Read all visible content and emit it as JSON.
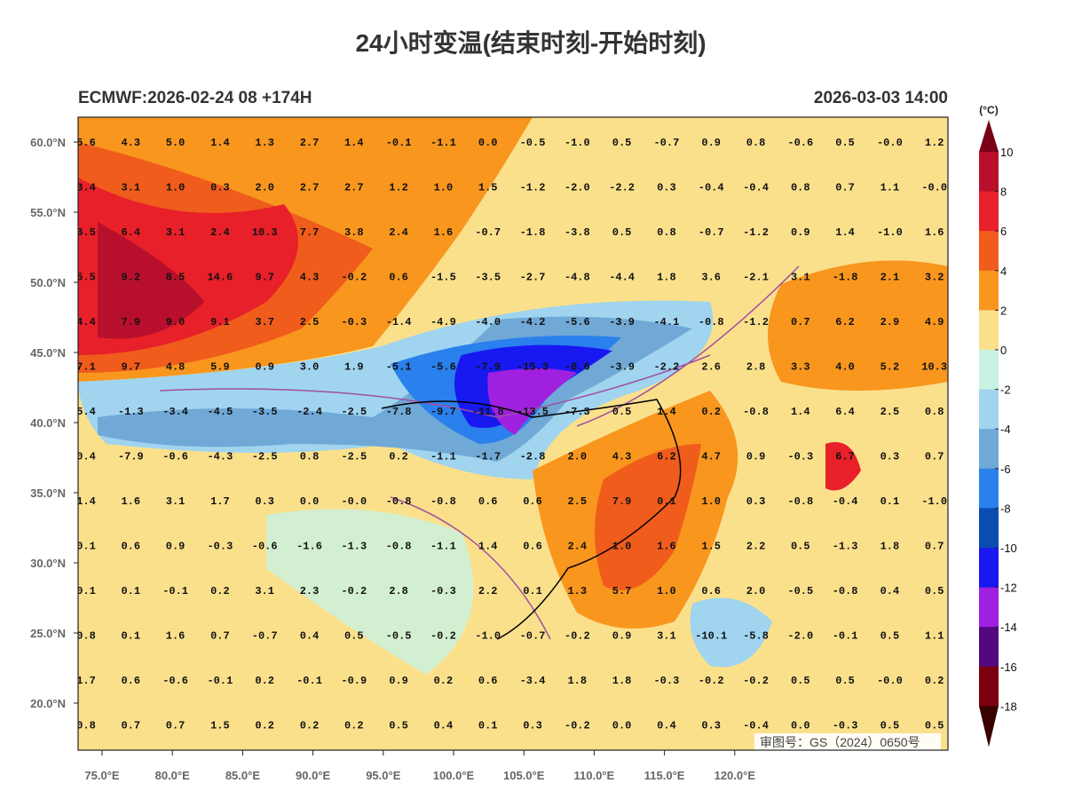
{
  "header": {
    "title": "24小时变温(结束时刻-开始时刻)",
    "left": "ECMWF:2026-02-24 08 +174H",
    "right": "2026-03-03 14:00"
  },
  "lat_labels": [
    "60.0°N",
    "55.0°N",
    "50.0°N",
    "45.0°N",
    "40.0°N",
    "35.0°N",
    "30.0°N",
    "25.0°N",
    "20.0°N"
  ],
  "lon_labels": [
    "75.0°E",
    "80.0°E",
    "85.0°E",
    "90.0°E",
    "95.0°E",
    "100.0°E",
    "105.0°E",
    "110.0°E",
    "115.0°E",
    "120.0°E"
  ],
  "grid": [
    [
      "5.6",
      "4.3",
      "5.0",
      "1.4",
      "1.3",
      "2.7",
      "1.4",
      "-0.1",
      "-1.1",
      "0.0",
      "-0.5",
      "-1.0",
      "0.5",
      "-0.7",
      "0.9",
      "0.8",
      "-0.6",
      "0.5",
      "-0.0",
      "1.2"
    ],
    [
      "3.4",
      "3.1",
      "1.0",
      "0.3",
      "2.0",
      "2.7",
      "2.7",
      "1.2",
      "1.0",
      "1.5",
      "-1.2",
      "-2.0",
      "-2.2",
      "0.3",
      "-0.4",
      "-0.4",
      "0.8",
      "0.7",
      "1.1",
      "-0.0"
    ],
    [
      "3.5",
      "6.4",
      "3.1",
      "2.4",
      "10.3",
      "7.7",
      "3.8",
      "2.4",
      "1.6",
      "-0.7",
      "-1.8",
      "-3.8",
      "0.5",
      "0.8",
      "-0.7",
      "-1.2",
      "0.9",
      "1.4",
      "-1.0",
      "1.6"
    ],
    [
      "5.5",
      "9.2",
      "8.5",
      "14.6",
      "9.7",
      "4.3",
      "-0.2",
      "0.6",
      "-1.5",
      "-3.5",
      "-2.7",
      "-4.8",
      "-4.4",
      "1.8",
      "3.6",
      "-2.1",
      "3.1",
      "-1.8",
      "2.1",
      "3.2"
    ],
    [
      "4.4",
      "7.9",
      "9.0",
      "9.1",
      "3.7",
      "2.5",
      "-0.3",
      "-1.4",
      "-4.9",
      "-4.0",
      "-4.2",
      "-5.6",
      "-3.9",
      "-4.1",
      "-0.8",
      "-1.2",
      "0.7",
      "6.2",
      "2.9",
      "4.9"
    ],
    [
      "7.1",
      "9.7",
      "4.8",
      "5.9",
      "0.9",
      "3.0",
      "1.9",
      "-5.1",
      "-5.6",
      "-7.9",
      "-15.3",
      "-8.6",
      "-3.9",
      "-2.2",
      "2.6",
      "2.8",
      "3.3",
      "4.0",
      "5.2",
      "10.3"
    ],
    [
      "5.4",
      "-1.3",
      "-3.4",
      "-4.5",
      "-3.5",
      "-2.4",
      "-2.5",
      "-7.8",
      "-9.7",
      "-11.8",
      "-13.5",
      "-7.3",
      "0.5",
      "1.4",
      "0.2",
      "-0.8",
      "1.4",
      "6.4",
      "2.5",
      "0.8"
    ],
    [
      "0.4",
      "-7.9",
      "-0.6",
      "-4.3",
      "-2.5",
      "0.8",
      "-2.5",
      "0.2",
      "-1.1",
      "-1.7",
      "-2.8",
      "2.0",
      "4.3",
      "6.2",
      "4.7",
      "0.9",
      "-0.3",
      "6.7",
      "0.3",
      "0.7"
    ],
    [
      "1.4",
      "1.6",
      "3.1",
      "1.7",
      "0.3",
      "0.0",
      "-0.0",
      "-0.8",
      "-0.8",
      "0.6",
      "0.6",
      "2.5",
      "7.9",
      "0.1",
      "1.0",
      "0.3",
      "-0.8",
      "-0.4",
      "0.1",
      "-1.0"
    ],
    [
      "0.1",
      "0.6",
      "0.9",
      "-0.3",
      "-0.6",
      "-1.6",
      "-1.3",
      "-0.8",
      "-1.1",
      "1.4",
      "0.6",
      "2.4",
      "1.0",
      "1.6",
      "1.5",
      "2.2",
      "0.5",
      "-1.3",
      "1.8",
      "0.7"
    ],
    [
      "0.1",
      "0.1",
      "-0.1",
      "0.2",
      "3.1",
      "2.3",
      "-0.2",
      "2.8",
      "-0.3",
      "2.2",
      "0.1",
      "1.3",
      "5.7",
      "1.0",
      "0.6",
      "2.0",
      "-0.5",
      "-0.8",
      "0.4",
      "0.5"
    ],
    [
      "0.8",
      "0.1",
      "1.6",
      "0.7",
      "-0.7",
      "0.4",
      "0.5",
      "-0.5",
      "-0.2",
      "-1.0",
      "-0.7",
      "-0.2",
      "0.9",
      "3.1",
      "-10.1",
      "-5.8",
      "-2.0",
      "-0.1",
      "0.5",
      "1.1"
    ],
    [
      "1.7",
      "0.6",
      "-0.6",
      "-0.1",
      "0.2",
      "-0.1",
      "-0.9",
      "0.9",
      "0.2",
      "0.6",
      "-3.4",
      "1.8",
      "1.8",
      "-0.3",
      "-0.2",
      "-0.2",
      "0.5",
      "0.5",
      "-0.0",
      "0.2"
    ],
    [
      "0.8",
      "0.7",
      "0.7",
      "1.5",
      "0.2",
      "0.2",
      "0.2",
      "0.5",
      "0.4",
      "0.1",
      "0.3",
      "-0.2",
      "0.0",
      "0.4",
      "0.3",
      "-0.4",
      "0.0",
      "-0.3",
      "0.5",
      "0.5"
    ]
  ],
  "colorbar": {
    "unit": "(°C)",
    "labels": [
      "10",
      "8",
      "6",
      "4",
      "2",
      "0",
      "-2",
      "-4",
      "-6",
      "-8",
      "-10",
      "-12",
      "-14",
      "-16",
      "-18"
    ],
    "colors": [
      "#7a0018",
      "#b8102c",
      "#e8202a",
      "#f05c1c",
      "#f8961e",
      "#fbe08c",
      "#c9f2e2",
      "#a0d4ef",
      "#70a8d6",
      "#2a80ec",
      "#0a4cb0",
      "#1818f0",
      "#a020e0",
      "#52087e",
      "#7a0010",
      "#3a0000"
    ]
  },
  "watermark": "审图号：GS（2024）0650号"
}
